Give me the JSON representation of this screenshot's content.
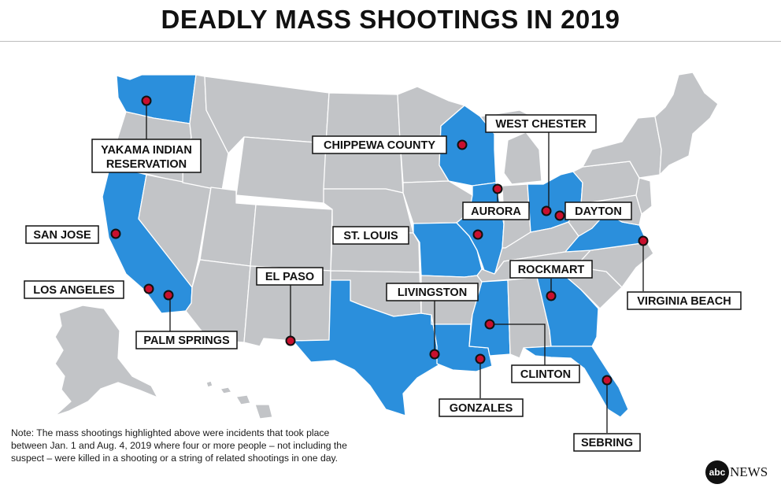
{
  "title": "DEADLY MASS SHOOTINGS IN 2019",
  "note": "Note: The mass shootings highlighted above were incidents that took place between Jan. 1 and Aug. 4, 2019 where four or more people – not including the suspect – were killed in a shooting or a string of related shootings in one day.",
  "logo": {
    "mark": "abc",
    "text": "NEWS"
  },
  "colors": {
    "highlight_state": "#2b8fdc",
    "other_state": "#c2c4c7",
    "marker": "#c8102e",
    "label_border": "#111111"
  },
  "locations": [
    {
      "id": "yakama",
      "label_lines": [
        "YAKAMA INDIAN",
        "RESERVATION"
      ]
    },
    {
      "id": "san-jose",
      "label_lines": [
        "SAN JOSE"
      ]
    },
    {
      "id": "los-angeles",
      "label_lines": [
        "LOS ANGELES"
      ]
    },
    {
      "id": "palm-springs",
      "label_lines": [
        "PALM SPRINGS"
      ]
    },
    {
      "id": "el-paso",
      "label_lines": [
        "EL PASO"
      ]
    },
    {
      "id": "chippewa-county",
      "label_lines": [
        "CHIPPEWA COUNTY"
      ]
    },
    {
      "id": "aurora",
      "label_lines": [
        "AURORA"
      ]
    },
    {
      "id": "st-louis",
      "label_lines": [
        "ST. LOUIS"
      ]
    },
    {
      "id": "livingston",
      "label_lines": [
        "LIVINGSTON"
      ]
    },
    {
      "id": "gonzales",
      "label_lines": [
        "GONZALES"
      ]
    },
    {
      "id": "clinton",
      "label_lines": [
        "CLINTON"
      ]
    },
    {
      "id": "rockmart",
      "label_lines": [
        "ROCKMART"
      ]
    },
    {
      "id": "sebring",
      "label_lines": [
        "SEBRING"
      ]
    },
    {
      "id": "west-chester",
      "label_lines": [
        "WEST CHESTER"
      ]
    },
    {
      "id": "dayton",
      "label_lines": [
        "DAYTON"
      ]
    },
    {
      "id": "virginia-beach",
      "label_lines": [
        "VIRGINIA BEACH"
      ]
    }
  ],
  "highlighted_states": [
    "Washington",
    "California",
    "Texas",
    "Wisconsin",
    "Illinois",
    "Missouri",
    "Louisiana",
    "Mississippi",
    "Georgia",
    "Florida",
    "Ohio",
    "Virginia"
  ]
}
